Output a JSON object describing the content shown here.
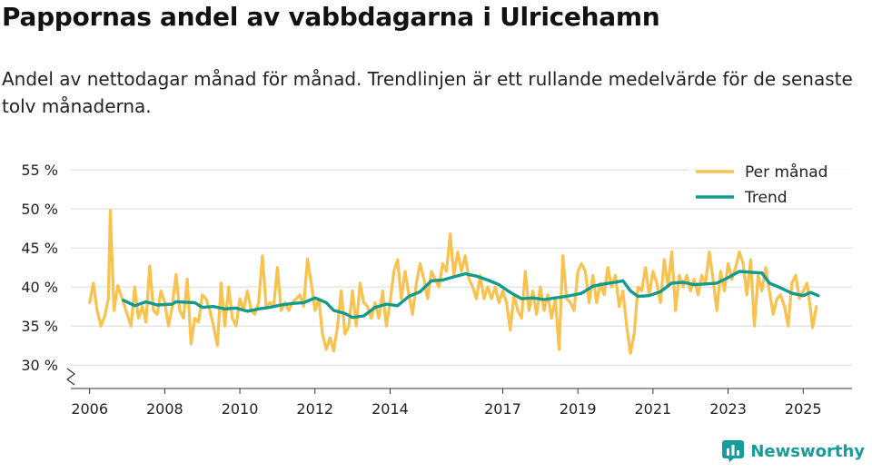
{
  "header": {
    "title": "Pappornas andel av vabbdagarna i Ulricehamn",
    "subtitle": "Andel av nettodagar månad för månad. Trendlinjen är ett rullande medelvärde för de senaste tolv månaderna."
  },
  "brand": {
    "name": "Newsworthy",
    "icon": "newsworthy-logo-icon"
  },
  "colors": {
    "monthly": "#f9c24e",
    "trend": "#139a8f",
    "grid": "#dddddd",
    "axis": "#333333",
    "brand": "#169c9c"
  },
  "chart_data": {
    "type": "line",
    "title": "Pappornas andel av vabbdagarna i Ulricehamn",
    "xlabel": "",
    "ylabel": "",
    "ylim": [
      27,
      57
    ],
    "xlim": [
      2005.5,
      2026.3
    ],
    "y_ticks": [
      30,
      35,
      40,
      45,
      50,
      55
    ],
    "y_tick_labels": [
      "30 %",
      "35 %",
      "40 %",
      "45 %",
      "50 %",
      "55 %"
    ],
    "x_ticks": [
      2006,
      2008,
      2010,
      2012,
      2014,
      2017,
      2019,
      2021,
      2023,
      2025
    ],
    "x_tick_labels": [
      "2006",
      "2008",
      "2010",
      "2012",
      "2014",
      "2017",
      "2019",
      "2021",
      "2023",
      "2025"
    ],
    "axis_break": true,
    "grid": true,
    "legend": {
      "position": "top-right",
      "entries": [
        "Per månad",
        "Trend"
      ]
    },
    "series": [
      {
        "name": "Per månad",
        "points": [
          [
            2006.0,
            38.0
          ],
          [
            2006.1,
            40.5
          ],
          [
            2006.2,
            37.0
          ],
          [
            2006.3,
            35.0
          ],
          [
            2006.4,
            36.2
          ],
          [
            2006.5,
            38.5
          ],
          [
            2006.55,
            49.8
          ],
          [
            2006.65,
            37.0
          ],
          [
            2006.75,
            40.2
          ],
          [
            2006.9,
            38.0
          ],
          [
            2007.0,
            36.5
          ],
          [
            2007.1,
            35.0
          ],
          [
            2007.2,
            40.0
          ],
          [
            2007.3,
            36.0
          ],
          [
            2007.4,
            37.5
          ],
          [
            2007.5,
            35.5
          ],
          [
            2007.6,
            42.7
          ],
          [
            2007.7,
            37.0
          ],
          [
            2007.8,
            36.5
          ],
          [
            2007.9,
            39.5
          ],
          [
            2008.0,
            38.0
          ],
          [
            2008.1,
            35.0
          ],
          [
            2008.2,
            37.5
          ],
          [
            2008.3,
            41.6
          ],
          [
            2008.4,
            37.0
          ],
          [
            2008.5,
            36.0
          ],
          [
            2008.6,
            41.0
          ],
          [
            2008.7,
            32.7
          ],
          [
            2008.8,
            36.0
          ],
          [
            2008.9,
            35.5
          ],
          [
            2009.0,
            39.0
          ],
          [
            2009.1,
            38.5
          ],
          [
            2009.2,
            37.0
          ],
          [
            2009.3,
            35.0
          ],
          [
            2009.4,
            32.5
          ],
          [
            2009.5,
            40.5
          ],
          [
            2009.6,
            35.0
          ],
          [
            2009.7,
            40.0
          ],
          [
            2009.8,
            36.0
          ],
          [
            2009.9,
            35.0
          ],
          [
            2010.0,
            38.5
          ],
          [
            2010.1,
            37.0
          ],
          [
            2010.2,
            39.5
          ],
          [
            2010.3,
            37.0
          ],
          [
            2010.4,
            36.5
          ],
          [
            2010.5,
            38.0
          ],
          [
            2010.6,
            44.0
          ],
          [
            2010.7,
            37.5
          ],
          [
            2010.8,
            38.0
          ],
          [
            2010.9,
            37.5
          ],
          [
            2011.0,
            42.5
          ],
          [
            2011.1,
            37.0
          ],
          [
            2011.2,
            38.0
          ],
          [
            2011.3,
            37.0
          ],
          [
            2011.4,
            38.0
          ],
          [
            2011.5,
            38.5
          ],
          [
            2011.6,
            39.0
          ],
          [
            2011.7,
            37.5
          ],
          [
            2011.8,
            43.6
          ],
          [
            2011.9,
            40.5
          ],
          [
            2012.0,
            37.0
          ],
          [
            2012.1,
            38.5
          ],
          [
            2012.2,
            34.0
          ],
          [
            2012.3,
            32.0
          ],
          [
            2012.4,
            33.5
          ],
          [
            2012.5,
            31.8
          ],
          [
            2012.6,
            35.0
          ],
          [
            2012.7,
            39.5
          ],
          [
            2012.8,
            34.0
          ],
          [
            2012.9,
            35.0
          ],
          [
            2013.0,
            39.5
          ],
          [
            2013.1,
            35.0
          ],
          [
            2013.2,
            40.5
          ],
          [
            2013.3,
            38.0
          ],
          [
            2013.4,
            37.5
          ],
          [
            2013.5,
            36.0
          ],
          [
            2013.6,
            38.0
          ],
          [
            2013.7,
            36.0
          ],
          [
            2013.8,
            39.5
          ],
          [
            2013.9,
            35.0
          ],
          [
            2014.0,
            38.0
          ],
          [
            2014.1,
            42.0
          ],
          [
            2014.2,
            43.5
          ],
          [
            2014.3,
            38.5
          ],
          [
            2014.4,
            42.0
          ],
          [
            2014.5,
            39.0
          ],
          [
            2014.6,
            36.5
          ],
          [
            2014.7,
            40.5
          ],
          [
            2014.8,
            43.0
          ],
          [
            2014.9,
            41.0
          ],
          [
            2015.0,
            38.5
          ],
          [
            2015.1,
            42.0
          ],
          [
            2015.2,
            41.0
          ],
          [
            2015.3,
            40.0
          ],
          [
            2015.4,
            43.0
          ],
          [
            2015.5,
            42.0
          ],
          [
            2015.6,
            46.8
          ],
          [
            2015.7,
            41.5
          ],
          [
            2015.8,
            44.5
          ],
          [
            2015.9,
            42.0
          ],
          [
            2016.0,
            44.0
          ],
          [
            2016.1,
            41.0
          ],
          [
            2016.2,
            40.0
          ],
          [
            2016.3,
            38.5
          ],
          [
            2016.4,
            41.5
          ],
          [
            2016.5,
            38.5
          ],
          [
            2016.6,
            40.0
          ],
          [
            2016.7,
            38.5
          ],
          [
            2016.8,
            40.0
          ],
          [
            2016.9,
            38.0
          ],
          [
            2017.0,
            39.5
          ],
          [
            2017.1,
            38.0
          ],
          [
            2017.2,
            34.5
          ],
          [
            2017.3,
            39.0
          ],
          [
            2017.4,
            37.0
          ],
          [
            2017.5,
            36.0
          ],
          [
            2017.6,
            42.0
          ],
          [
            2017.7,
            37.0
          ],
          [
            2017.8,
            39.5
          ],
          [
            2017.9,
            36.5
          ],
          [
            2018.0,
            40.0
          ],
          [
            2018.1,
            37.0
          ],
          [
            2018.2,
            39.0
          ],
          [
            2018.3,
            36.0
          ],
          [
            2018.4,
            38.5
          ],
          [
            2018.5,
            32.0
          ],
          [
            2018.6,
            44.0
          ],
          [
            2018.7,
            38.5
          ],
          [
            2018.8,
            38.0
          ],
          [
            2018.9,
            37.0
          ],
          [
            2019.0,
            42.0
          ],
          [
            2019.1,
            43.0
          ],
          [
            2019.2,
            42.0
          ],
          [
            2019.3,
            38.0
          ],
          [
            2019.4,
            41.5
          ],
          [
            2019.5,
            38.0
          ],
          [
            2019.6,
            40.5
          ],
          [
            2019.7,
            39.0
          ],
          [
            2019.8,
            42.5
          ],
          [
            2019.9,
            40.0
          ],
          [
            2020.0,
            41.5
          ],
          [
            2020.1,
            37.5
          ],
          [
            2020.2,
            39.5
          ],
          [
            2020.3,
            35.0
          ],
          [
            2020.4,
            31.5
          ],
          [
            2020.5,
            34.0
          ],
          [
            2020.6,
            40.0
          ],
          [
            2020.7,
            39.5
          ],
          [
            2020.8,
            42.5
          ],
          [
            2020.9,
            39.0
          ],
          [
            2021.0,
            42.0
          ],
          [
            2021.1,
            40.5
          ],
          [
            2021.2,
            38.0
          ],
          [
            2021.3,
            43.5
          ],
          [
            2021.4,
            40.0
          ],
          [
            2021.5,
            44.5
          ],
          [
            2021.6,
            37.0
          ],
          [
            2021.7,
            41.5
          ],
          [
            2021.8,
            40.0
          ],
          [
            2021.9,
            41.5
          ],
          [
            2022.0,
            39.5
          ],
          [
            2022.1,
            41.0
          ],
          [
            2022.2,
            39.0
          ],
          [
            2022.3,
            41.5
          ],
          [
            2022.4,
            40.5
          ],
          [
            2022.5,
            44.5
          ],
          [
            2022.6,
            41.0
          ],
          [
            2022.7,
            37.0
          ],
          [
            2022.8,
            42.0
          ],
          [
            2022.9,
            39.5
          ],
          [
            2023.0,
            43.0
          ],
          [
            2023.1,
            41.0
          ],
          [
            2023.2,
            42.5
          ],
          [
            2023.3,
            44.5
          ],
          [
            2023.4,
            43.0
          ],
          [
            2023.5,
            39.0
          ],
          [
            2023.6,
            43.5
          ],
          [
            2023.7,
            35.0
          ],
          [
            2023.8,
            41.5
          ],
          [
            2023.9,
            39.5
          ],
          [
            2024.0,
            42.5
          ],
          [
            2024.1,
            39.5
          ],
          [
            2024.2,
            36.5
          ],
          [
            2024.3,
            38.5
          ],
          [
            2024.4,
            39.0
          ],
          [
            2024.5,
            37.5
          ],
          [
            2024.6,
            35.0
          ],
          [
            2024.7,
            40.5
          ],
          [
            2024.8,
            41.5
          ],
          [
            2024.9,
            38.5
          ],
          [
            2025.0,
            39.5
          ],
          [
            2025.1,
            40.5
          ],
          [
            2025.2,
            37.0
          ],
          [
            2025.25,
            34.8
          ],
          [
            2025.35,
            37.5
          ]
        ]
      },
      {
        "name": "Trend",
        "points": [
          [
            2006.9,
            38.3
          ],
          [
            2007.2,
            37.6
          ],
          [
            2007.5,
            38.1
          ],
          [
            2007.8,
            37.7
          ],
          [
            2008.2,
            37.8
          ],
          [
            2008.3,
            38.1
          ],
          [
            2008.8,
            38.0
          ],
          [
            2009.0,
            37.4
          ],
          [
            2009.3,
            37.5
          ],
          [
            2009.6,
            37.2
          ],
          [
            2009.9,
            37.3
          ],
          [
            2010.2,
            36.9
          ],
          [
            2010.5,
            37.2
          ],
          [
            2010.8,
            37.4
          ],
          [
            2011.1,
            37.7
          ],
          [
            2011.4,
            37.9
          ],
          [
            2011.7,
            38.0
          ],
          [
            2012.0,
            38.6
          ],
          [
            2012.3,
            38.0
          ],
          [
            2012.5,
            37.0
          ],
          [
            2012.8,
            36.6
          ],
          [
            2013.0,
            36.1
          ],
          [
            2013.3,
            36.3
          ],
          [
            2013.6,
            37.4
          ],
          [
            2013.9,
            37.8
          ],
          [
            2014.2,
            37.6
          ],
          [
            2014.5,
            38.8
          ],
          [
            2014.8,
            39.4
          ],
          [
            2015.1,
            40.8
          ],
          [
            2015.4,
            40.9
          ],
          [
            2015.7,
            41.3
          ],
          [
            2016.0,
            41.7
          ],
          [
            2016.3,
            41.4
          ],
          [
            2016.6,
            40.9
          ],
          [
            2016.9,
            40.3
          ],
          [
            2017.2,
            39.3
          ],
          [
            2017.5,
            38.5
          ],
          [
            2017.8,
            38.6
          ],
          [
            2018.1,
            38.4
          ],
          [
            2018.4,
            38.6
          ],
          [
            2018.8,
            38.9
          ],
          [
            2019.1,
            39.2
          ],
          [
            2019.4,
            40.1
          ],
          [
            2019.7,
            40.4
          ],
          [
            2020.0,
            40.6
          ],
          [
            2020.2,
            40.8
          ],
          [
            2020.4,
            39.5
          ],
          [
            2020.6,
            38.8
          ],
          [
            2020.9,
            38.9
          ],
          [
            2021.2,
            39.4
          ],
          [
            2021.5,
            40.5
          ],
          [
            2021.8,
            40.6
          ],
          [
            2022.1,
            40.3
          ],
          [
            2022.4,
            40.4
          ],
          [
            2022.7,
            40.5
          ],
          [
            2023.0,
            41.2
          ],
          [
            2023.3,
            42.0
          ],
          [
            2023.6,
            41.9
          ],
          [
            2023.9,
            41.8
          ],
          [
            2024.1,
            40.5
          ],
          [
            2024.4,
            39.9
          ],
          [
            2024.7,
            39.2
          ],
          [
            2025.0,
            38.9
          ],
          [
            2025.2,
            39.3
          ],
          [
            2025.4,
            38.9
          ]
        ]
      }
    ]
  }
}
